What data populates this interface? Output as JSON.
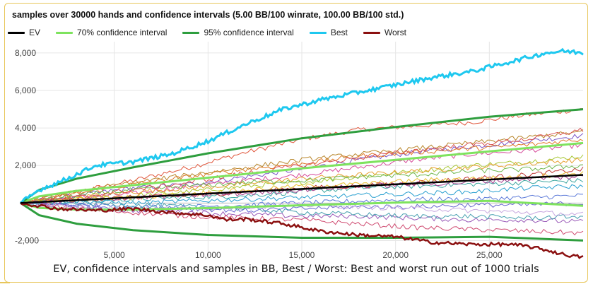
{
  "chart_data": {
    "type": "line",
    "title": "samples over 30000 hands and confidence intervals (5.00 BB/100 winrate, 100.00 BB/100 std.)",
    "caption": "EV, confidence intervals and samples in BB, Best / Worst: Best and worst run out of 1000 trials",
    "xlabel": "",
    "ylabel": "",
    "xlim": [
      0,
      30000
    ],
    "ylim": [
      -3000,
      8600
    ],
    "x_ticks": [
      5000,
      10000,
      15000,
      20000,
      25000
    ],
    "x_tick_labels": [
      "5,000",
      "10,000",
      "15,000",
      "20,000",
      "25,000"
    ],
    "y_ticks": [
      -2000,
      2000,
      4000,
      6000,
      8000
    ],
    "y_tick_labels": [
      "-2,000",
      "2,000",
      "4,000",
      "6,000",
      "8,000"
    ],
    "grid": true,
    "legend_position": "top-left",
    "series": [
      {
        "name": "EV",
        "color": "#000000",
        "x": [
          0,
          30000
        ],
        "y": [
          0,
          1500
        ]
      },
      {
        "name": "70% confidence interval",
        "color": "#7ee35e",
        "x": [
          0,
          1000,
          3000,
          6000,
          10000,
          15000,
          20000,
          25000,
          30000
        ],
        "upper": [
          0,
          360,
          650,
          950,
          1350,
          1850,
          2300,
          2750,
          3200
        ],
        "lower": [
          0,
          -260,
          -350,
          -350,
          -270,
          -120,
          20,
          120,
          -150
        ]
      },
      {
        "name": "95% confidence interval",
        "color": "#2e9e3e",
        "x": [
          0,
          1000,
          3000,
          6000,
          10000,
          15000,
          20000,
          25000,
          30000
        ],
        "upper": [
          0,
          700,
          1300,
          1900,
          2650,
          3450,
          4050,
          4600,
          5000
        ],
        "lower": [
          0,
          -650,
          -1100,
          -1450,
          -1700,
          -1850,
          -1850,
          -1800,
          -2000
        ]
      },
      {
        "name": "Best",
        "color": "#1ec8ef",
        "x": [
          0,
          1000,
          2500,
          4000,
          6000,
          8000,
          10000,
          12000,
          14000,
          16000,
          18000,
          20000,
          22000,
          24000,
          26000,
          28000,
          29000,
          30000
        ],
        "y": [
          0,
          700,
          1300,
          2000,
          2200,
          2600,
          3300,
          4200,
          5000,
          5500,
          5900,
          6300,
          6700,
          7000,
          7500,
          8000,
          8100,
          8000
        ]
      },
      {
        "name": "Worst",
        "color": "#8b1010",
        "x": [
          0,
          1000,
          2000,
          4000,
          6000,
          8000,
          10000,
          11000,
          12000,
          14000,
          16000,
          18000,
          20000,
          22000,
          24000,
          26000,
          27000,
          28000,
          29000,
          30000
        ],
        "y": [
          0,
          -150,
          -300,
          -400,
          -300,
          -500,
          -650,
          -900,
          -850,
          -1100,
          -1500,
          -1700,
          -1800,
          -2100,
          -2200,
          -2200,
          -2300,
          -2500,
          -2750,
          -2900
        ]
      }
    ],
    "sample_runs": [
      {
        "color": "#e0553a",
        "x": [
          0,
          3000,
          6000,
          9000,
          12000,
          15000,
          18000,
          21000,
          24000,
          27000,
          30000
        ],
        "y": [
          0,
          600,
          1200,
          1900,
          2700,
          3400,
          3900,
          4100,
          4300,
          4700,
          5000
        ]
      },
      {
        "color": "#7a56c8",
        "x": [
          0,
          3000,
          6000,
          9000,
          12000,
          15000,
          18000,
          21000,
          24000,
          27000,
          30000
        ],
        "y": [
          0,
          400,
          800,
          1000,
          1400,
          1800,
          2300,
          2700,
          3000,
          3300,
          3600
        ]
      },
      {
        "color": "#d64a9a",
        "x": [
          0,
          3000,
          6000,
          9000,
          12000,
          15000,
          18000,
          21000,
          24000,
          27000,
          30000
        ],
        "y": [
          0,
          300,
          500,
          900,
          1200,
          1500,
          1900,
          2300,
          2600,
          2800,
          3100
        ]
      },
      {
        "color": "#a8c838",
        "x": [
          0,
          3000,
          6000,
          9000,
          12000,
          15000,
          18000,
          21000,
          24000,
          27000,
          30000
        ],
        "y": [
          0,
          200,
          400,
          600,
          900,
          1100,
          1400,
          1700,
          2000,
          2200,
          2500
        ]
      },
      {
        "color": "#3fa8a2",
        "x": [
          0,
          3000,
          6000,
          9000,
          12000,
          15000,
          18000,
          21000,
          24000,
          27000,
          30000
        ],
        "y": [
          0,
          100,
          200,
          300,
          400,
          600,
          800,
          900,
          1000,
          1100,
          1200
        ]
      },
      {
        "color": "#e8a030",
        "x": [
          0,
          3000,
          6000,
          9000,
          12000,
          15000,
          18000,
          21000,
          24000,
          27000,
          30000
        ],
        "y": [
          0,
          300,
          600,
          800,
          1000,
          1300,
          1500,
          1700,
          1900,
          2100,
          2300
        ]
      },
      {
        "color": "#5a78d8",
        "x": [
          0,
          3000,
          6000,
          9000,
          12000,
          15000,
          18000,
          21000,
          24000,
          27000,
          30000
        ],
        "y": [
          0,
          -100,
          -200,
          -200,
          -100,
          0,
          100,
          200,
          200,
          300,
          400
        ]
      },
      {
        "color": "#c03838",
        "x": [
          0,
          3000,
          6000,
          9000,
          12000,
          15000,
          18000,
          21000,
          24000,
          27000,
          30000
        ],
        "y": [
          0,
          200,
          300,
          400,
          600,
          800,
          900,
          1100,
          1300,
          1500,
          1800
        ]
      },
      {
        "color": "#9a5ab8",
        "x": [
          0,
          3000,
          6000,
          9000,
          12000,
          15000,
          18000,
          21000,
          24000,
          27000,
          30000
        ],
        "y": [
          0,
          -200,
          -400,
          -500,
          -600,
          -700,
          -700,
          -800,
          -900,
          -900,
          -1000
        ]
      },
      {
        "color": "#e07a28",
        "x": [
          0,
          3000,
          6000,
          9000,
          12000,
          15000,
          18000,
          21000,
          24000,
          27000,
          30000
        ],
        "y": [
          0,
          500,
          1000,
          1400,
          1800,
          2100,
          2500,
          2700,
          2900,
          3100,
          3400
        ]
      },
      {
        "color": "#2aa0d0",
        "x": [
          0,
          3000,
          6000,
          9000,
          12000,
          15000,
          18000,
          21000,
          24000,
          27000,
          30000
        ],
        "y": [
          0,
          100,
          0,
          100,
          200,
          300,
          400,
          500,
          600,
          800,
          900
        ]
      },
      {
        "color": "#cf4a70",
        "x": [
          0,
          3000,
          6000,
          9000,
          12000,
          15000,
          18000,
          21000,
          24000,
          27000,
          30000
        ],
        "y": [
          0,
          -300,
          -500,
          -700,
          -800,
          -900,
          -1100,
          -1300,
          -1400,
          -1500,
          -1600
        ]
      },
      {
        "color": "#70b850",
        "x": [
          0,
          3000,
          6000,
          9000,
          12000,
          15000,
          18000,
          21000,
          24000,
          27000,
          30000
        ],
        "y": [
          0,
          400,
          700,
          900,
          1100,
          1200,
          1400,
          1500,
          1700,
          1800,
          2000
        ]
      },
      {
        "color": "#b8862a",
        "x": [
          0,
          3000,
          6000,
          9000,
          12000,
          15000,
          18000,
          21000,
          24000,
          27000,
          30000
        ],
        "y": [
          0,
          600,
          1100,
          1500,
          1900,
          2300,
          2600,
          2900,
          3200,
          3500,
          3800
        ]
      },
      {
        "color": "#6868d0",
        "x": [
          0,
          3000,
          6000,
          9000,
          12000,
          15000,
          18000,
          21000,
          24000,
          27000,
          30000
        ],
        "y": [
          0,
          -100,
          -300,
          -300,
          -400,
          -300,
          -200,
          -200,
          -100,
          -100,
          0
        ]
      },
      {
        "color": "#e8c030",
        "x": [
          0,
          3000,
          6000,
          9000,
          12000,
          15000,
          18000,
          21000,
          24000,
          27000,
          30000
        ],
        "y": [
          0,
          200,
          300,
          500,
          700,
          900,
          1000,
          1200,
          1300,
          1400,
          1600
        ]
      },
      {
        "color": "#d85050",
        "x": [
          0,
          3000,
          6000,
          9000,
          12000,
          15000,
          18000,
          21000,
          24000,
          27000,
          30000
        ],
        "y": [
          0,
          300,
          700,
          1100,
          1600,
          2000,
          2400,
          2800,
          3100,
          3400,
          3900
        ]
      },
      {
        "color": "#48a0b0",
        "x": [
          0,
          3000,
          6000,
          9000,
          12000,
          15000,
          18000,
          21000,
          24000,
          27000,
          30000
        ],
        "y": [
          0,
          0,
          -100,
          -200,
          -300,
          -500,
          -600,
          -700,
          -700,
          -800,
          -700
        ]
      },
      {
        "color": "#a84090",
        "x": [
          0,
          3000,
          6000,
          9000,
          12000,
          15000,
          18000,
          21000,
          24000,
          27000,
          30000
        ],
        "y": [
          0,
          100,
          300,
          400,
          500,
          700,
          900,
          1000,
          1100,
          1300,
          1400
        ]
      },
      {
        "color": "#c8a8e0",
        "x": [
          0,
          3000,
          6000,
          9000,
          12000,
          15000,
          18000,
          21000,
          24000,
          27000,
          30000
        ],
        "y": [
          0,
          -200,
          -300,
          -300,
          -200,
          -100,
          -200,
          -300,
          -400,
          -500,
          -600
        ]
      }
    ]
  }
}
